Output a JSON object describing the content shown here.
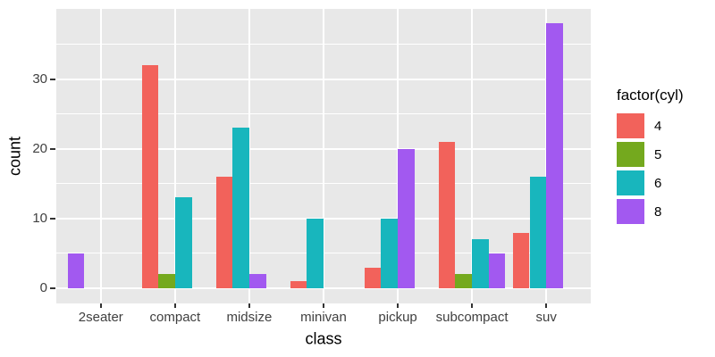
{
  "chart_data": {
    "type": "bar",
    "title": "",
    "xlabel": "class",
    "ylabel": "count",
    "categories": [
      "2seater",
      "compact",
      "midsize",
      "minivan",
      "pickup",
      "subcompact",
      "suv"
    ],
    "series": [
      {
        "name": "4",
        "color": "#F2625B",
        "values": [
          null,
          32,
          16,
          1,
          3,
          21,
          8
        ]
      },
      {
        "name": "5",
        "color": "#74A91E",
        "values": [
          null,
          2,
          null,
          null,
          null,
          2,
          null
        ]
      },
      {
        "name": "6",
        "color": "#18B6BD",
        "values": [
          null,
          13,
          23,
          10,
          10,
          7,
          16
        ]
      },
      {
        "name": "8",
        "color": "#A259F0",
        "values": [
          5,
          null,
          2,
          null,
          20,
          5,
          38
        ]
      }
    ],
    "bar_mode": "dodge",
    "legend_title": "factor(cyl)",
    "legend_position": "right",
    "y_ticks": [
      "0",
      "10",
      "20",
      "30"
    ],
    "y_tick_values": [
      0,
      10,
      20,
      30
    ],
    "y_minor_values": [
      5,
      15,
      25,
      35
    ],
    "ylim": [
      0,
      40
    ],
    "grid": true,
    "colors": {
      "panel_bg": "#E8E8E8",
      "grid": "#FFFFFF",
      "tick_text": "#404040",
      "title_text": "#000000",
      "tick_mark": "#333333"
    }
  }
}
